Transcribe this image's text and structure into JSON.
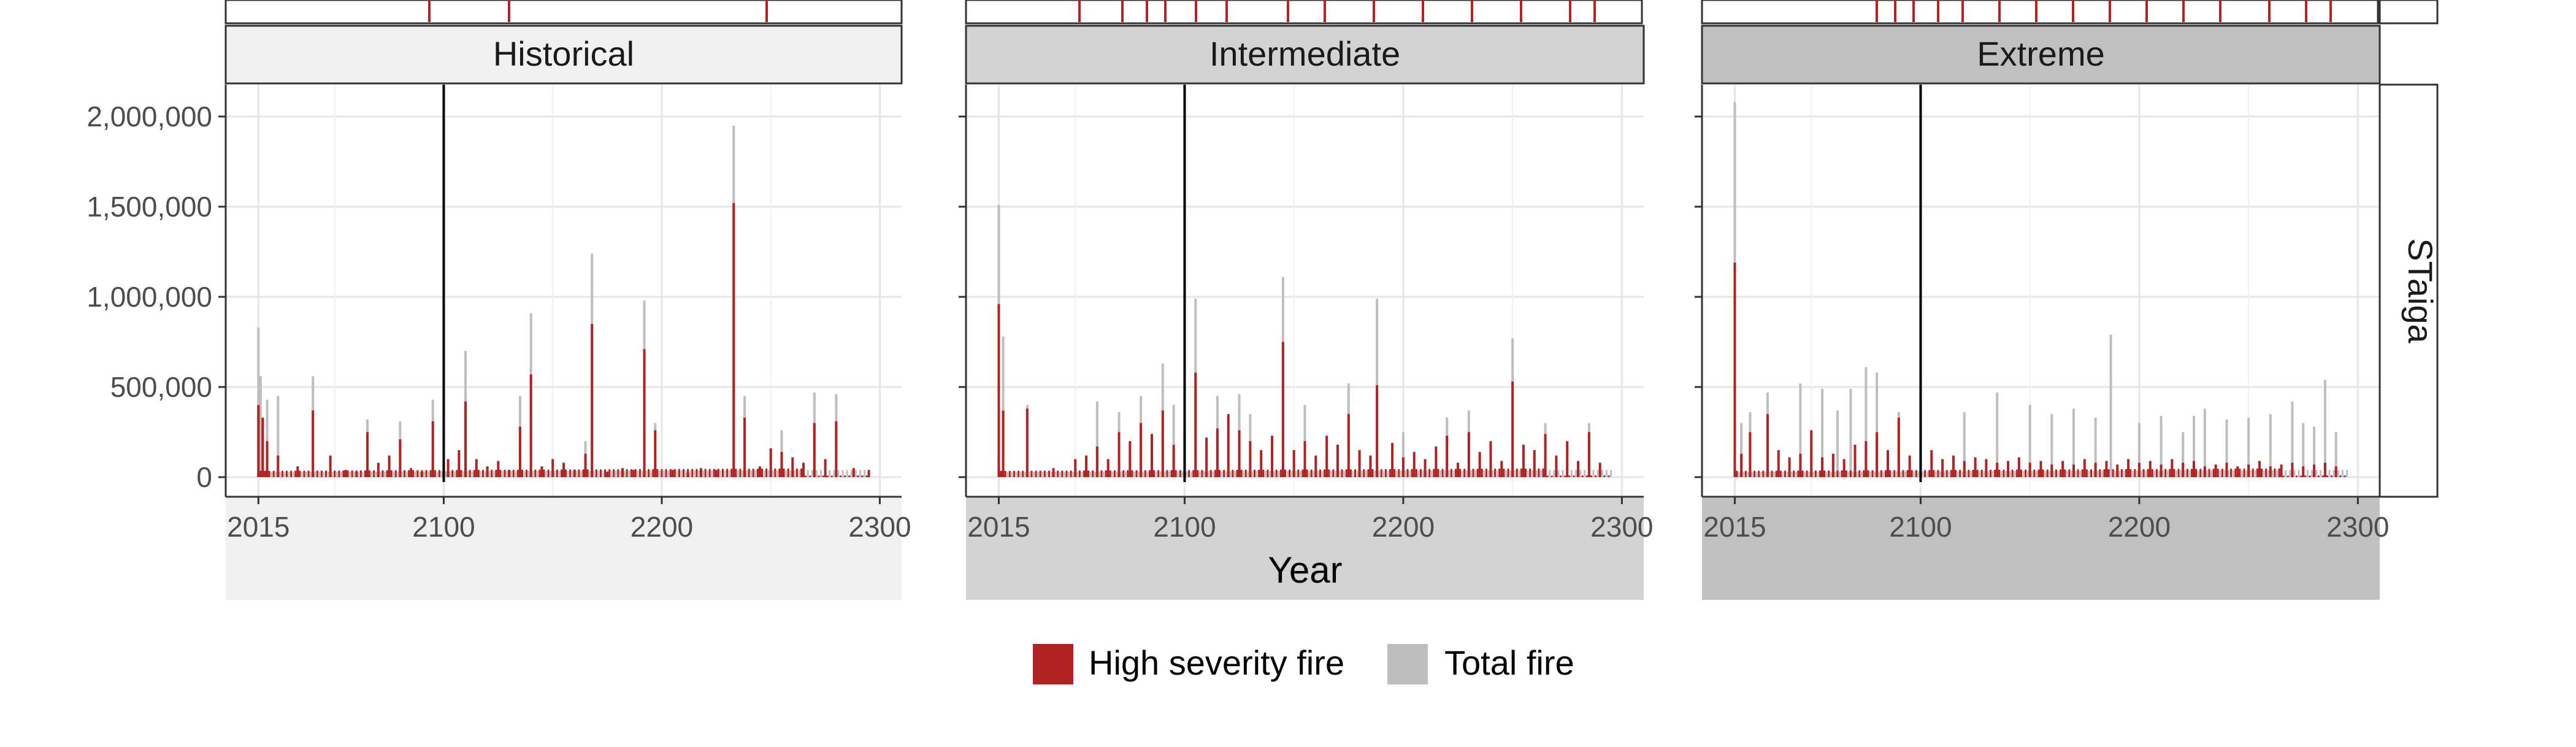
{
  "chart_data": {
    "type": "bar",
    "facet_row_label": "STaiga",
    "panels": [
      {
        "title": "Historical",
        "x_ticks": [
          2015,
          2100,
          2200,
          2300
        ],
        "xlim": [
          2000,
          2310
        ],
        "reference_line_x": 2100,
        "high_severity_spikes": [
          [
            2015,
            400000
          ],
          [
            2017,
            330000
          ],
          [
            2019,
            200000
          ],
          [
            2024,
            120000
          ],
          [
            2033,
            60000
          ],
          [
            2040,
            370000
          ],
          [
            2048,
            120000
          ],
          [
            2055,
            40000
          ],
          [
            2060,
            30000
          ],
          [
            2065,
            250000
          ],
          [
            2070,
            80000
          ],
          [
            2075,
            120000
          ],
          [
            2080,
            210000
          ],
          [
            2085,
            50000
          ],
          [
            2090,
            30000
          ],
          [
            2095,
            310000
          ],
          [
            2102,
            100000
          ],
          [
            2107,
            150000
          ],
          [
            2110,
            420000
          ],
          [
            2115,
            100000
          ],
          [
            2120,
            60000
          ],
          [
            2125,
            90000
          ],
          [
            2130,
            40000
          ],
          [
            2135,
            280000
          ],
          [
            2140,
            570000
          ],
          [
            2145,
            60000
          ],
          [
            2150,
            100000
          ],
          [
            2155,
            80000
          ],
          [
            2160,
            40000
          ],
          [
            2165,
            130000
          ],
          [
            2168,
            850000
          ],
          [
            2175,
            30000
          ],
          [
            2182,
            50000
          ],
          [
            2187,
            40000
          ],
          [
            2192,
            710000
          ],
          [
            2197,
            260000
          ],
          [
            2205,
            40000
          ],
          [
            2212,
            25000
          ],
          [
            2218,
            50000
          ],
          [
            2225,
            40000
          ],
          [
            2233,
            1520000
          ],
          [
            2238,
            330000
          ],
          [
            2245,
            60000
          ],
          [
            2250,
            160000
          ],
          [
            2255,
            140000
          ],
          [
            2260,
            110000
          ],
          [
            2265,
            80000
          ],
          [
            2270,
            300000
          ],
          [
            2275,
            100000
          ],
          [
            2280,
            310000
          ],
          [
            2288,
            50000
          ],
          [
            2295,
            40000
          ]
        ],
        "total_fire_spikes": [
          [
            2015,
            830000
          ],
          [
            2016,
            560000
          ],
          [
            2019,
            430000
          ],
          [
            2024,
            450000
          ],
          [
            2040,
            560000
          ],
          [
            2065,
            320000
          ],
          [
            2080,
            310000
          ],
          [
            2095,
            430000
          ],
          [
            2110,
            700000
          ],
          [
            2135,
            450000
          ],
          [
            2140,
            910000
          ],
          [
            2165,
            200000
          ],
          [
            2168,
            1240000
          ],
          [
            2192,
            980000
          ],
          [
            2197,
            300000
          ],
          [
            2233,
            1950000
          ],
          [
            2238,
            450000
          ],
          [
            2255,
            260000
          ],
          [
            2270,
            470000
          ],
          [
            2280,
            460000
          ]
        ],
        "strip_top_label": ""
      },
      {
        "title": "Intermediate",
        "x_ticks": [
          2015,
          2100,
          2200,
          2300
        ],
        "xlim": [
          2000,
          2310
        ],
        "reference_line_x": 2100,
        "high_severity_spikes": [
          [
            2015,
            960000
          ],
          [
            2017,
            370000
          ],
          [
            2028,
            380000
          ],
          [
            2040,
            50000
          ],
          [
            2050,
            100000
          ],
          [
            2055,
            120000
          ],
          [
            2060,
            170000
          ],
          [
            2065,
            100000
          ],
          [
            2070,
            250000
          ],
          [
            2075,
            200000
          ],
          [
            2080,
            300000
          ],
          [
            2085,
            240000
          ],
          [
            2090,
            370000
          ],
          [
            2095,
            180000
          ],
          [
            2100,
            250000
          ],
          [
            2105,
            580000
          ],
          [
            2110,
            220000
          ],
          [
            2115,
            270000
          ],
          [
            2120,
            350000
          ],
          [
            2125,
            260000
          ],
          [
            2130,
            200000
          ],
          [
            2135,
            150000
          ],
          [
            2140,
            230000
          ],
          [
            2145,
            750000
          ],
          [
            2150,
            150000
          ],
          [
            2155,
            200000
          ],
          [
            2160,
            120000
          ],
          [
            2165,
            230000
          ],
          [
            2170,
            180000
          ],
          [
            2175,
            350000
          ],
          [
            2180,
            150000
          ],
          [
            2185,
            120000
          ],
          [
            2188,
            510000
          ],
          [
            2195,
            190000
          ],
          [
            2200,
            110000
          ],
          [
            2205,
            140000
          ],
          [
            2210,
            100000
          ],
          [
            2215,
            170000
          ],
          [
            2220,
            230000
          ],
          [
            2225,
            80000
          ],
          [
            2230,
            250000
          ],
          [
            2235,
            140000
          ],
          [
            2240,
            200000
          ],
          [
            2245,
            90000
          ],
          [
            2250,
            530000
          ],
          [
            2255,
            180000
          ],
          [
            2260,
            150000
          ],
          [
            2265,
            240000
          ],
          [
            2270,
            120000
          ],
          [
            2275,
            200000
          ],
          [
            2280,
            90000
          ],
          [
            2285,
            250000
          ],
          [
            2290,
            80000
          ]
        ],
        "total_fire_spikes": [
          [
            2015,
            1510000
          ],
          [
            2017,
            780000
          ],
          [
            2028,
            400000
          ],
          [
            2060,
            420000
          ],
          [
            2070,
            360000
          ],
          [
            2080,
            450000
          ],
          [
            2090,
            630000
          ],
          [
            2095,
            400000
          ],
          [
            2105,
            990000
          ],
          [
            2115,
            450000
          ],
          [
            2125,
            460000
          ],
          [
            2130,
            350000
          ],
          [
            2145,
            1110000
          ],
          [
            2155,
            400000
          ],
          [
            2175,
            520000
          ],
          [
            2188,
            990000
          ],
          [
            2200,
            250000
          ],
          [
            2220,
            330000
          ],
          [
            2230,
            370000
          ],
          [
            2250,
            770000
          ],
          [
            2265,
            300000
          ],
          [
            2285,
            300000
          ]
        ],
        "strip_top_label": ""
      },
      {
        "title": "Extreme",
        "x_ticks": [
          2015,
          2100,
          2200,
          2300
        ],
        "xlim": [
          2000,
          2310
        ],
        "reference_line_x": 2100,
        "high_severity_spikes": [
          [
            2015,
            1190000
          ],
          [
            2018,
            130000
          ],
          [
            2022,
            250000
          ],
          [
            2030,
            350000
          ],
          [
            2035,
            150000
          ],
          [
            2040,
            110000
          ],
          [
            2045,
            130000
          ],
          [
            2050,
            260000
          ],
          [
            2055,
            110000
          ],
          [
            2060,
            130000
          ],
          [
            2065,
            100000
          ],
          [
            2070,
            180000
          ],
          [
            2075,
            200000
          ],
          [
            2080,
            250000
          ],
          [
            2085,
            150000
          ],
          [
            2090,
            330000
          ],
          [
            2095,
            120000
          ],
          [
            2100,
            100000
          ],
          [
            2105,
            150000
          ],
          [
            2110,
            100000
          ],
          [
            2115,
            120000
          ],
          [
            2120,
            90000
          ],
          [
            2125,
            110000
          ],
          [
            2130,
            100000
          ],
          [
            2135,
            80000
          ],
          [
            2140,
            90000
          ],
          [
            2145,
            110000
          ],
          [
            2150,
            80000
          ],
          [
            2155,
            90000
          ],
          [
            2160,
            70000
          ],
          [
            2165,
            90000
          ],
          [
            2170,
            70000
          ],
          [
            2175,
            100000
          ],
          [
            2180,
            80000
          ],
          [
            2185,
            90000
          ],
          [
            2190,
            70000
          ],
          [
            2195,
            100000
          ],
          [
            2200,
            80000
          ],
          [
            2205,
            90000
          ],
          [
            2210,
            70000
          ],
          [
            2215,
            100000
          ],
          [
            2220,
            80000
          ],
          [
            2225,
            90000
          ],
          [
            2230,
            60000
          ],
          [
            2235,
            70000
          ],
          [
            2240,
            80000
          ],
          [
            2245,
            60000
          ],
          [
            2250,
            70000
          ],
          [
            2255,
            90000
          ],
          [
            2260,
            60000
          ],
          [
            2265,
            70000
          ],
          [
            2270,
            80000
          ],
          [
            2275,
            60000
          ],
          [
            2280,
            70000
          ],
          [
            2285,
            80000
          ],
          [
            2290,
            60000
          ]
        ],
        "total_fire_spikes": [
          [
            2015,
            2080000
          ],
          [
            2018,
            300000
          ],
          [
            2022,
            360000
          ],
          [
            2030,
            470000
          ],
          [
            2045,
            520000
          ],
          [
            2055,
            490000
          ],
          [
            2062,
            370000
          ],
          [
            2068,
            490000
          ],
          [
            2075,
            610000
          ],
          [
            2080,
            580000
          ],
          [
            2090,
            360000
          ],
          [
            2100,
            420000
          ],
          [
            2120,
            360000
          ],
          [
            2135,
            470000
          ],
          [
            2150,
            400000
          ],
          [
            2160,
            350000
          ],
          [
            2170,
            380000
          ],
          [
            2180,
            330000
          ],
          [
            2187,
            790000
          ],
          [
            2200,
            300000
          ],
          [
            2210,
            340000
          ],
          [
            2220,
            250000
          ],
          [
            2225,
            340000
          ],
          [
            2230,
            380000
          ],
          [
            2240,
            320000
          ],
          [
            2250,
            330000
          ],
          [
            2260,
            350000
          ],
          [
            2270,
            420000
          ],
          [
            2275,
            300000
          ],
          [
            2280,
            280000
          ],
          [
            2285,
            540000
          ],
          [
            2290,
            250000
          ]
        ],
        "strip_top_label": ""
      }
    ],
    "y_ticks": [
      0,
      500000,
      1000000,
      1500000,
      2000000
    ],
    "ylim": [
      -70000,
      2150000
    ],
    "xlabel": "Year",
    "ylabel": "",
    "series": [
      {
        "name": "High severity fire",
        "color": "#B22222"
      },
      {
        "name": "Total fire",
        "color": "#BEBEBE"
      }
    ],
    "panel_strip_colors": [
      "#F0F0F0",
      "#D3D3D3",
      "#C0C0C0"
    ],
    "grid": true,
    "legend_position": "bottom"
  }
}
